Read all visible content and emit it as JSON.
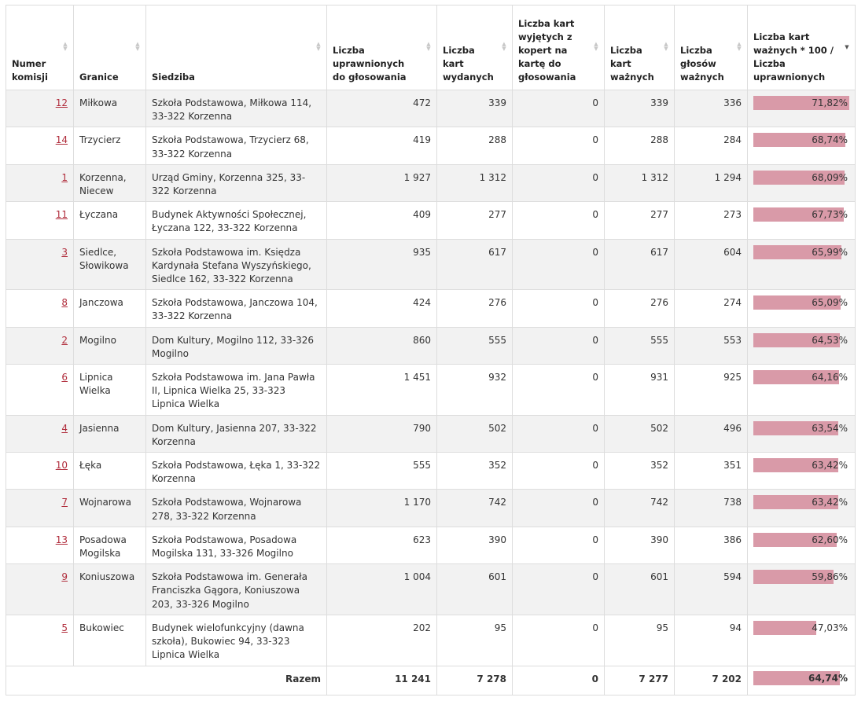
{
  "headers": {
    "numer": "Numer komisji",
    "granice": "Granice",
    "siedziba": "Siedziba",
    "uprawnionych": "Liczba uprawnionych do głosowania",
    "wydanych": "Liczba kart wydanych",
    "wyjetych": "Liczba kart wyjętych z kopert na kartę do głosowania",
    "waznych": "Liczba kart ważnych",
    "glosow": "Liczba głosów ważnych",
    "frekwencja": "Liczba kart ważnych * 100 / Liczba uprawnionych"
  },
  "rows": [
    {
      "nr": "12",
      "granice": "Miłkowa",
      "siedziba": "Szkoła Podstawowa, Miłkowa 114, 33-322 Korzenna",
      "uprawnionych": "472",
      "wydanych": "339",
      "wyjetych": "0",
      "waznych": "339",
      "glosow": "336",
      "frekwencja": "71,82%",
      "pct": 71.82
    },
    {
      "nr": "14",
      "granice": "Trzycierz",
      "siedziba": "Szkoła Podstawowa, Trzycierz 68, 33-322 Korzenna",
      "uprawnionych": "419",
      "wydanych": "288",
      "wyjetych": "0",
      "waznych": "288",
      "glosow": "284",
      "frekwencja": "68,74%",
      "pct": 68.74
    },
    {
      "nr": "1",
      "granice": "Korzenna, Niecew",
      "siedziba": "Urząd Gminy, Korzenna 325, 33-322 Korzenna",
      "uprawnionych": "1 927",
      "wydanych": "1 312",
      "wyjetych": "0",
      "waznych": "1 312",
      "glosow": "1 294",
      "frekwencja": "68,09%",
      "pct": 68.09
    },
    {
      "nr": "11",
      "granice": "Łyczana",
      "siedziba": "Budynek Aktywności Społecznej, Łyczana 122, 33-322 Korzenna",
      "uprawnionych": "409",
      "wydanych": "277",
      "wyjetych": "0",
      "waznych": "277",
      "glosow": "273",
      "frekwencja": "67,73%",
      "pct": 67.73
    },
    {
      "nr": "3",
      "granice": "Siedlce, Słowikowa",
      "siedziba": "Szkoła Podstawowa im. Księdza Kardynała Stefana Wyszyńskiego, Siedlce 162, 33-322 Korzenna",
      "uprawnionych": "935",
      "wydanych": "617",
      "wyjetych": "0",
      "waznych": "617",
      "glosow": "604",
      "frekwencja": "65,99%",
      "pct": 65.99
    },
    {
      "nr": "8",
      "granice": "Janczowa",
      "siedziba": "Szkoła Podstawowa, Janczowa 104, 33-322 Korzenna",
      "uprawnionych": "424",
      "wydanych": "276",
      "wyjetych": "0",
      "waznych": "276",
      "glosow": "274",
      "frekwencja": "65,09%",
      "pct": 65.09
    },
    {
      "nr": "2",
      "granice": "Mogilno",
      "siedziba": "Dom Kultury, Mogilno 112, 33-326 Mogilno",
      "uprawnionych": "860",
      "wydanych": "555",
      "wyjetych": "0",
      "waznych": "555",
      "glosow": "553",
      "frekwencja": "64,53%",
      "pct": 64.53
    },
    {
      "nr": "6",
      "granice": "Lipnica Wielka",
      "siedziba": "Szkoła Podstawowa im. Jana Pawła II, Lipnica Wielka 25, 33-323 Lipnica Wielka",
      "uprawnionych": "1 451",
      "wydanych": "932",
      "wyjetych": "0",
      "waznych": "931",
      "glosow": "925",
      "frekwencja": "64,16%",
      "pct": 64.16
    },
    {
      "nr": "4",
      "granice": "Jasienna",
      "siedziba": "Dom Kultury, Jasienna 207, 33-322 Korzenna",
      "uprawnionych": "790",
      "wydanych": "502",
      "wyjetych": "0",
      "waznych": "502",
      "glosow": "496",
      "frekwencja": "63,54%",
      "pct": 63.54
    },
    {
      "nr": "10",
      "granice": "Łęka",
      "siedziba": "Szkoła Podstawowa, Łęka 1, 33-322 Korzenna",
      "uprawnionych": "555",
      "wydanych": "352",
      "wyjetych": "0",
      "waznych": "352",
      "glosow": "351",
      "frekwencja": "63,42%",
      "pct": 63.42
    },
    {
      "nr": "7",
      "granice": "Wojnarowa",
      "siedziba": "Szkoła Podstawowa, Wojnarowa 278, 33-322 Korzenna",
      "uprawnionych": "1 170",
      "wydanych": "742",
      "wyjetych": "0",
      "waznych": "742",
      "glosow": "738",
      "frekwencja": "63,42%",
      "pct": 63.42
    },
    {
      "nr": "13",
      "granice": "Posadowa Mogilska",
      "siedziba": "Szkoła Podstawowa, Posadowa Mogilska 131, 33-326 Mogilno",
      "uprawnionych": "623",
      "wydanych": "390",
      "wyjetych": "0",
      "waznych": "390",
      "glosow": "386",
      "frekwencja": "62,60%",
      "pct": 62.6
    },
    {
      "nr": "9",
      "granice": "Koniuszowa",
      "siedziba": "Szkoła Podstawowa im. Generała Franciszka Gągora, Koniuszowa 203, 33-326 Mogilno",
      "uprawnionych": "1 004",
      "wydanych": "601",
      "wyjetych": "0",
      "waznych": "601",
      "glosow": "594",
      "frekwencja": "59,86%",
      "pct": 59.86
    },
    {
      "nr": "5",
      "granice": "Bukowiec",
      "siedziba": "Budynek wielofunkcyjny (dawna szkoła), Bukowiec 94, 33-323 Lipnica Wielka",
      "uprawnionych": "202",
      "wydanych": "95",
      "wyjetych": "0",
      "waznych": "95",
      "glosow": "94",
      "frekwencja": "47,03%",
      "pct": 47.03
    }
  ],
  "footer": {
    "label": "Razem",
    "uprawnionych": "11 241",
    "wydanych": "7 278",
    "wyjetych": "0",
    "waznych": "7 277",
    "glosow": "7 202",
    "frekwencja": "64,74%",
    "pct": 64.74
  },
  "colors": {
    "bar": "#d99aa8",
    "link": "#b02c3b",
    "stripe": "#f2f2f2"
  },
  "sort": {
    "column": "frekwencja",
    "direction": "descending"
  }
}
